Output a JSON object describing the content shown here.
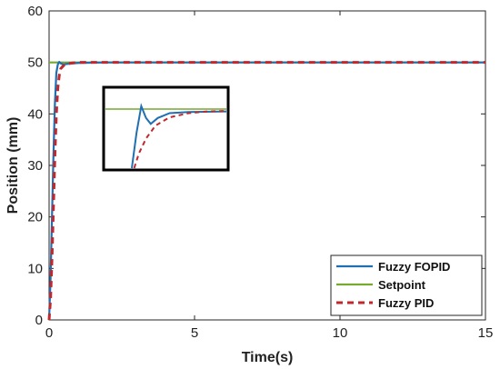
{
  "chart_data": {
    "type": "line",
    "xlabel": "Time(s)",
    "ylabel": "Position (mm)",
    "xlim": [
      0,
      15
    ],
    "ylim": [
      0,
      60
    ],
    "xticks": [
      0,
      5,
      10,
      15
    ],
    "yticks": [
      0,
      10,
      20,
      30,
      40,
      50,
      60
    ],
    "grid": false,
    "legend_position": "bottom-right",
    "series": [
      {
        "name": "Fuzzy FOPID",
        "color": "#1f6fb2",
        "style": "solid",
        "x": [
          0,
          0.05,
          0.1,
          0.15,
          0.2,
          0.25,
          0.3,
          0.35,
          0.4,
          0.5,
          0.6,
          0.8,
          1.0,
          2.0,
          5.0,
          10.0,
          15.0
        ],
        "y": [
          0,
          8,
          20,
          32,
          42,
          48,
          49.6,
          50.1,
          49.8,
          49.6,
          49.7,
          49.8,
          49.9,
          50,
          50,
          50,
          50
        ]
      },
      {
        "name": "Setpoint",
        "color": "#77a832",
        "style": "solid",
        "x": [
          0,
          15
        ],
        "y": [
          50,
          50
        ]
      },
      {
        "name": "Fuzzy PID",
        "color": "#c0282d",
        "style": "dashed",
        "x": [
          0,
          0.05,
          0.1,
          0.15,
          0.2,
          0.25,
          0.3,
          0.35,
          0.4,
          0.5,
          0.6,
          0.8,
          1.0,
          2.0,
          5.0,
          10.0,
          15.0
        ],
        "y": [
          0,
          4,
          12,
          22,
          32,
          40,
          45,
          47.5,
          48.8,
          49.4,
          49.7,
          49.9,
          50,
          50,
          50,
          50,
          50
        ]
      }
    ],
    "inset": {
      "description_of_view": "zoomed view near setpoint",
      "fopid": [
        [
          0,
          0
        ],
        [
          0.1,
          0.6
        ],
        [
          0.2,
          1.05
        ],
        [
          0.3,
          0.85
        ],
        [
          0.4,
          0.75
        ],
        [
          0.55,
          0.85
        ],
        [
          0.8,
          0.93
        ],
        [
          1.2,
          0.95
        ],
        [
          2.0,
          0.96
        ]
      ],
      "pid": [
        [
          0.05,
          0
        ],
        [
          0.15,
          0.25
        ],
        [
          0.3,
          0.5
        ],
        [
          0.5,
          0.72
        ],
        [
          0.8,
          0.86
        ],
        [
          1.2,
          0.93
        ],
        [
          1.6,
          0.96
        ],
        [
          2.0,
          0.97
        ]
      ]
    }
  }
}
